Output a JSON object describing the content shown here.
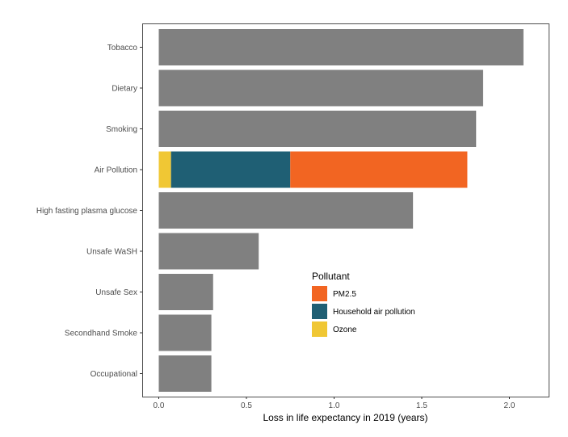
{
  "chart_data": {
    "type": "bar",
    "orientation": "horizontal",
    "stacked": true,
    "categories": [
      "Tobacco",
      "Dietary",
      "Smoking",
      "Air Pollution",
      "High fasting plasma glucose",
      "Unsafe WaSH",
      "Unsafe Sex",
      "Secondhand Smoke",
      "Occupational"
    ],
    "values": [
      2.08,
      1.85,
      1.81,
      1.76,
      1.45,
      0.57,
      0.31,
      0.3,
      0.3
    ],
    "default_color": "#808080",
    "breakdown": {
      "category": "Air Pollution",
      "segments": [
        {
          "name": "Ozone",
          "value": 0.07,
          "color": "#F0C734"
        },
        {
          "name": "Household air pollution",
          "value": 0.68,
          "color": "#1F5F74"
        },
        {
          "name": "PM2.5",
          "value": 1.01,
          "color": "#F26522"
        }
      ]
    },
    "xlabel": "Loss in life expectancy in 2019 (years)",
    "ylabel": "",
    "xlim": [
      -0.1,
      2.2
    ],
    "xticks": [
      0.0,
      0.5,
      1.0,
      1.5,
      2.0
    ],
    "xtick_labels": [
      "0.0",
      "0.5",
      "1.0",
      "1.5",
      "2.0"
    ],
    "grid": false,
    "legend": {
      "title": "Pollutant",
      "position": "center-right inside",
      "entries": [
        {
          "label": "PM2.5",
          "color": "#F26522"
        },
        {
          "label": "Household air pollution",
          "color": "#1F5F74"
        },
        {
          "label": "Ozone",
          "color": "#F0C734"
        }
      ]
    }
  }
}
